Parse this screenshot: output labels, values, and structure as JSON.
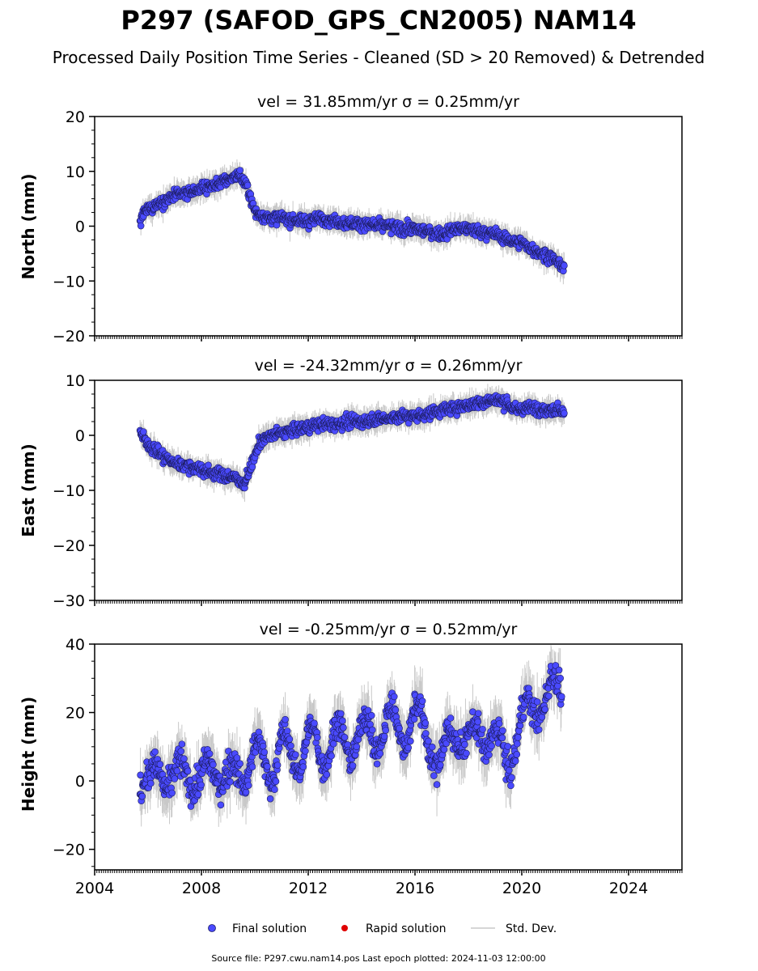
{
  "figure": {
    "title": "P297 (SAFOD_GPS_CN2005) NAM14",
    "subtitle": "Processed Daily Position Time Series - Cleaned (SD > 20 Removed) & Detrended",
    "footer": "Source file: P297.cwu.nam14.pos  Last epoch plotted: 2024-11-03 12:00:00"
  },
  "legend": {
    "final": "Final solution",
    "rapid": "Rapid solution",
    "std": "Std. Dev.",
    "final_color": "#4a4aff",
    "rapid_color": "#e00000",
    "std_color": "#c8c8c8"
  },
  "chart_data": [
    {
      "type": "scatter",
      "title": "vel = 31.85mm/yr   σ = 0.25mm/yr",
      "xlabel": "",
      "ylabel": "North (mm)",
      "xlim": [
        2004,
        2026
      ],
      "ylim": [
        -20,
        20
      ],
      "yticks": [
        "20",
        "10",
        "0",
        "−10",
        "−20"
      ],
      "ytick_values": [
        20,
        10,
        0,
        -10,
        -20
      ],
      "xtick_values": [
        2004,
        2008,
        2012,
        2016,
        2020,
        2024
      ],
      "series": [
        {
          "name": "Final solution",
          "x": [
            2005.7,
            2005.8,
            2006.0,
            2006.5,
            2007.0,
            2007.5,
            2008.0,
            2008.5,
            2009.0,
            2009.4,
            2009.6,
            2009.8,
            2010.0,
            2010.5,
            2011.0,
            2011.5,
            2012.0,
            2012.5,
            2013.0,
            2013.5,
            2014.0,
            2014.5,
            2015.0,
            2015.5,
            2016.0,
            2016.5,
            2017.0,
            2017.5,
            2018.0,
            2018.5,
            2019.0,
            2019.5,
            2020.0,
            2020.5,
            2021.0,
            2021.3,
            2021.6
          ],
          "y": [
            0.5,
            2.0,
            3.0,
            4.5,
            5.5,
            6.0,
            7.0,
            7.5,
            8.5,
            9.5,
            8.0,
            6.0,
            2.5,
            1.5,
            1.5,
            1.0,
            1.0,
            1.5,
            1.0,
            0.5,
            0.5,
            0.0,
            0.0,
            -0.5,
            -0.5,
            -1.0,
            -1.5,
            -0.5,
            -0.5,
            -1.0,
            -1.5,
            -2.5,
            -3.0,
            -4.5,
            -5.5,
            -6.5,
            -7.5
          ]
        }
      ]
    },
    {
      "type": "scatter",
      "title": "vel = -24.32mm/yr   σ = 0.26mm/yr",
      "xlabel": "",
      "ylabel": "East (mm)",
      "xlim": [
        2004,
        2026
      ],
      "ylim": [
        -30,
        10
      ],
      "yticks": [
        "10",
        "0",
        "−10",
        "−20",
        "−30"
      ],
      "ytick_values": [
        10,
        0,
        -10,
        -20,
        -30
      ],
      "xtick_values": [
        2004,
        2008,
        2012,
        2016,
        2020,
        2024
      ],
      "series": [
        {
          "name": "Final solution",
          "x": [
            2005.7,
            2005.9,
            2006.2,
            2006.6,
            2007.0,
            2007.4,
            2007.8,
            2008.2,
            2008.6,
            2009.0,
            2009.4,
            2009.6,
            2009.9,
            2010.2,
            2010.6,
            2011.0,
            2011.5,
            2012.0,
            2012.5,
            2013.0,
            2013.5,
            2014.0,
            2014.5,
            2015.0,
            2015.5,
            2016.0,
            2016.5,
            2017.0,
            2017.5,
            2018.0,
            2018.5,
            2019.0,
            2019.4,
            2019.8,
            2020.2,
            2020.6,
            2021.0,
            2021.4,
            2021.6
          ],
          "y": [
            0.5,
            -1.0,
            -2.5,
            -4.0,
            -5.0,
            -5.5,
            -6.0,
            -6.5,
            -7.0,
            -7.5,
            -8.0,
            -9.0,
            -5.0,
            -1.0,
            0.0,
            0.5,
            1.0,
            1.5,
            2.0,
            2.0,
            2.5,
            2.5,
            3.0,
            3.0,
            3.5,
            3.5,
            4.0,
            4.5,
            5.0,
            5.5,
            6.0,
            6.5,
            6.0,
            4.5,
            5.0,
            5.0,
            4.5,
            5.0,
            3.5
          ]
        }
      ]
    },
    {
      "type": "scatter",
      "title": "vel = -0.25mm/yr   σ = 0.52mm/yr",
      "xlabel": "",
      "ylabel": "Height (mm)",
      "xlim": [
        2004,
        2026
      ],
      "ylim": [
        -26,
        40
      ],
      "yticks": [
        "40",
        "20",
        "0",
        "−20"
      ],
      "ytick_values": [
        40,
        20,
        0,
        -20
      ],
      "xtick_values": [
        2004,
        2008,
        2012,
        2016,
        2020,
        2024
      ],
      "xticks": [
        "2004",
        "2008",
        "2012",
        "2016",
        "2020",
        "2024"
      ],
      "series": [
        {
          "name": "Final solution",
          "x": [
            2005.7,
            2006.0,
            2006.5,
            2007.0,
            2007.5,
            2008.0,
            2008.5,
            2009.0,
            2009.5,
            2010.0,
            2010.5,
            2011.0,
            2011.5,
            2012.0,
            2012.5,
            2013.0,
            2013.5,
            2014.0,
            2014.5,
            2015.0,
            2015.5,
            2016.0,
            2016.5,
            2017.0,
            2017.5,
            2018.0,
            2018.5,
            2019.0,
            2019.5,
            2020.0,
            2020.5,
            2021.0,
            2021.5
          ],
          "y": [
            2,
            -2,
            4,
            0,
            3,
            -1,
            5,
            0,
            2,
            8,
            3,
            10,
            6,
            12,
            8,
            13,
            10,
            15,
            12,
            18,
            14,
            20,
            12,
            5,
            16,
            10,
            15,
            12,
            5,
            18,
            22,
            25,
            28
          ]
        }
      ]
    }
  ]
}
